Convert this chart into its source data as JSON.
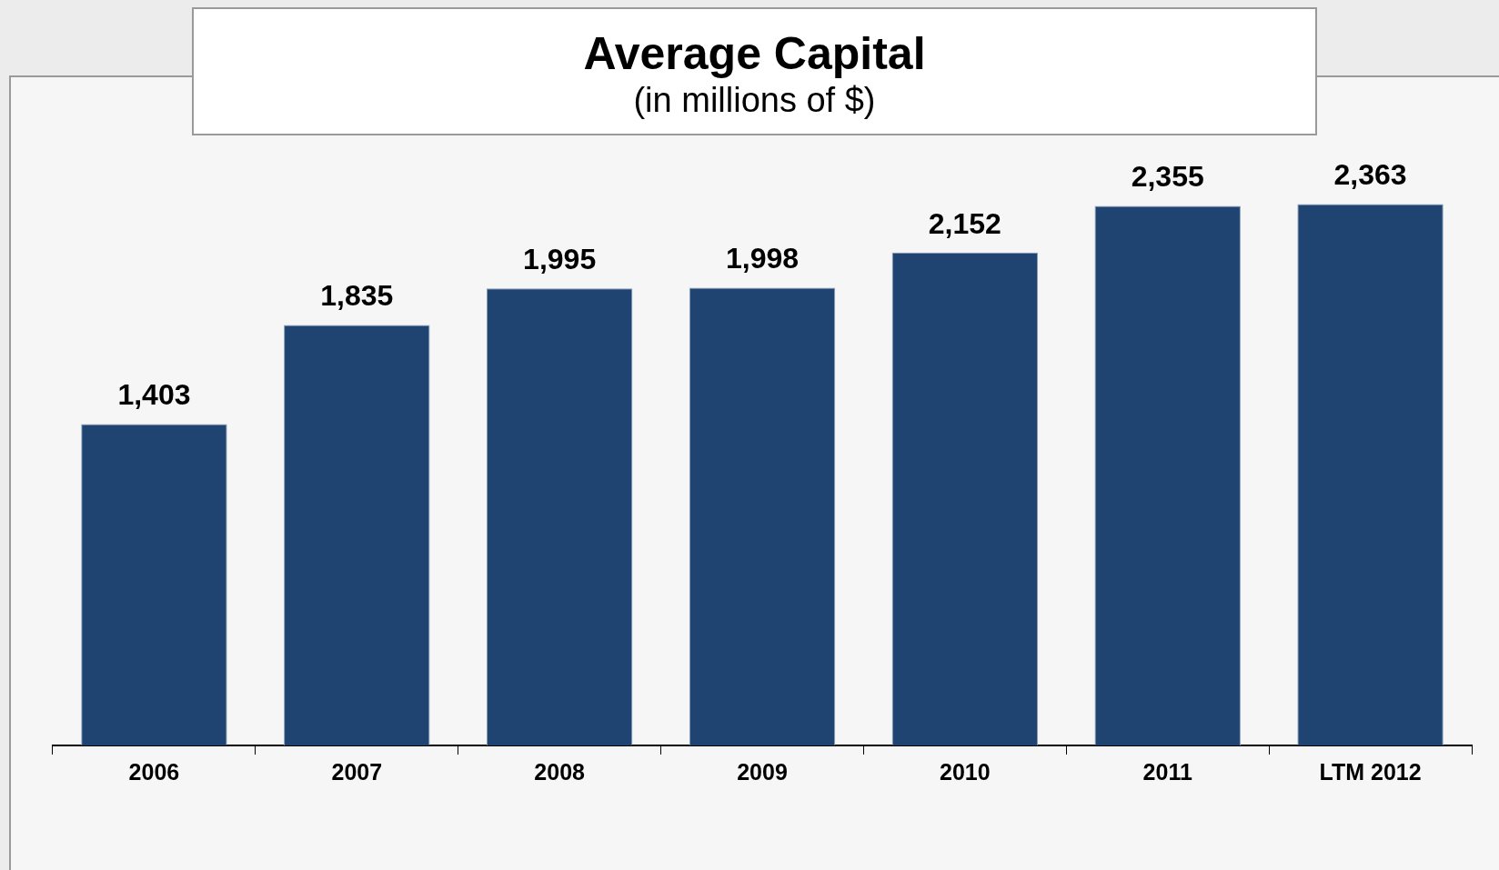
{
  "chart_data": {
    "type": "bar",
    "title": "Average Capital",
    "subtitle": "(in millions of $)",
    "categories": [
      "2006",
      "2007",
      "2008",
      "2009",
      "2010",
      "2011",
      "LTM 2012"
    ],
    "values": [
      1403,
      1835,
      1995,
      1998,
      2152,
      2355,
      2363
    ],
    "value_labels": [
      "1,403",
      "1,835",
      "1,995",
      "1,998",
      "2,152",
      "2,355",
      "2,363"
    ],
    "color": "#1f4472",
    "grid": false,
    "legend": false,
    "tick_labels": "x"
  }
}
